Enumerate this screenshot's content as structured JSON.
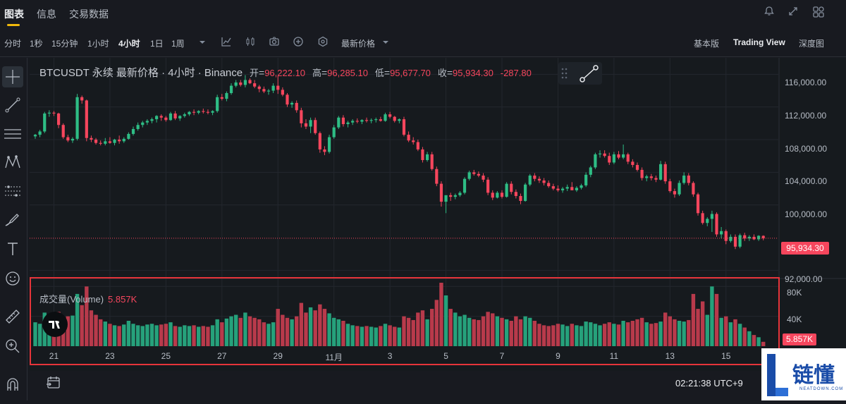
{
  "top_tabs": [
    {
      "label": "图表",
      "active": true
    },
    {
      "label": "信息",
      "active": false
    },
    {
      "label": "交易数据",
      "active": false
    }
  ],
  "top_icons": [
    "bell-icon",
    "expand-icon",
    "layout-grid-icon"
  ],
  "timeframes": [
    {
      "label": "分时",
      "active": false
    },
    {
      "label": "1秒",
      "active": false
    },
    {
      "label": "15分钟",
      "active": false
    },
    {
      "label": "1小时",
      "active": false
    },
    {
      "label": "4小时",
      "active": true
    },
    {
      "label": "1日",
      "active": false
    },
    {
      "label": "1周",
      "active": false
    }
  ],
  "toolbar": {
    "price_type": "最新价格",
    "modes": [
      {
        "label": "基本版",
        "active": false
      },
      {
        "label": "Trading View",
        "active": true
      },
      {
        "label": "深度图",
        "active": false
      }
    ]
  },
  "legend": {
    "symbol": "BTCUSDT 永续 最新价格 · 4小时 · Binance",
    "open_label": "开",
    "open": "96,222.10",
    "high_label": "高",
    "high": "96,285.10",
    "low_label": "低",
    "low": "95,677.70",
    "close_label": "收",
    "close": "95,934.30",
    "change": "-287.80"
  },
  "current_price": "95,934.30",
  "volume": {
    "title": "成交量(Volume)",
    "value": "5.857K",
    "tag": "5.857K"
  },
  "clock": "02:21:38 UTC+9",
  "watermark": {
    "title": "链懂",
    "sub": "NEATDOWN.COM"
  },
  "colors": {
    "up": "#2ebd85",
    "down": "#f6465d",
    "up_vol": "#26a17b",
    "down_vol": "#b83a4b",
    "accent": "#f0b90b"
  },
  "chart_data": {
    "type": "candlestick",
    "symbol": "BTCUSDT",
    "interval": "4小时",
    "y_ticks": [
      "116,000.00",
      "112,000.00",
      "108,000.00",
      "104,000.00",
      "100,000.00",
      "92,000.00"
    ],
    "y_tick_values": [
      116000,
      112000,
      108000,
      104000,
      100000,
      92000
    ],
    "ylim": [
      91000,
      117500
    ],
    "volume_ticks": [
      "80K",
      "40K"
    ],
    "volume_tick_values": [
      80000,
      40000
    ],
    "volume_max": 85000,
    "x_ticks": [
      {
        "label": "21",
        "index": 4
      },
      {
        "label": "23",
        "index": 16
      },
      {
        "label": "25",
        "index": 28
      },
      {
        "label": "27",
        "index": 40
      },
      {
        "label": "29",
        "index": 52
      },
      {
        "label": "11月",
        "index": 64
      },
      {
        "label": "3",
        "index": 76
      },
      {
        "label": "5",
        "index": 88
      },
      {
        "label": "7",
        "index": 100
      },
      {
        "label": "9",
        "index": 112
      },
      {
        "label": "11",
        "index": 124
      },
      {
        "label": "13",
        "index": 136
      },
      {
        "label": "15",
        "index": 148
      }
    ],
    "candles": [
      [
        108400,
        108700,
        108100,
        108600,
        32000
      ],
      [
        108600,
        109200,
        108300,
        109000,
        30000
      ],
      [
        109000,
        111400,
        108800,
        111200,
        45000
      ],
      [
        111200,
        111600,
        110800,
        111300,
        38000
      ],
      [
        111300,
        111500,
        110900,
        111200,
        30000
      ],
      [
        111200,
        111300,
        109400,
        109800,
        46000
      ],
      [
        109800,
        110000,
        108100,
        108300,
        35000
      ],
      [
        108300,
        108600,
        107700,
        107900,
        40000
      ],
      [
        107900,
        108300,
        107600,
        108100,
        41000
      ],
      [
        108100,
        113600,
        107900,
        113200,
        70000
      ],
      [
        113200,
        113400,
        112400,
        112800,
        55000
      ],
      [
        112800,
        112900,
        107800,
        108200,
        80000
      ],
      [
        108200,
        108500,
        107700,
        108000,
        48000
      ],
      [
        108000,
        108200,
        107400,
        107600,
        42000
      ],
      [
        107600,
        107900,
        107300,
        107500,
        36000
      ],
      [
        107500,
        108200,
        107300,
        107800,
        33000
      ],
      [
        107800,
        108300,
        107500,
        107600,
        30000
      ],
      [
        107600,
        108100,
        107300,
        108000,
        28000
      ],
      [
        108000,
        108500,
        107500,
        107800,
        27000
      ],
      [
        107800,
        108300,
        107600,
        108100,
        29000
      ],
      [
        108100,
        108900,
        108000,
        108700,
        34000
      ],
      [
        108700,
        109600,
        108500,
        109300,
        30000
      ],
      [
        109300,
        110100,
        109100,
        109800,
        28000
      ],
      [
        109800,
        110300,
        109500,
        110100,
        27000
      ],
      [
        110100,
        110500,
        109800,
        110300,
        29000
      ],
      [
        110300,
        110700,
        110000,
        110500,
        30000
      ],
      [
        110500,
        111000,
        110100,
        110900,
        28000
      ],
      [
        110900,
        111100,
        110300,
        110700,
        29000
      ],
      [
        110700,
        110900,
        110200,
        110400,
        30000
      ],
      [
        110400,
        111400,
        110300,
        111200,
        32000
      ],
      [
        111200,
        111500,
        110400,
        110600,
        27000
      ],
      [
        110600,
        111000,
        110300,
        110900,
        26000
      ],
      [
        110900,
        111300,
        110700,
        111100,
        28000
      ],
      [
        111100,
        111500,
        110900,
        111400,
        27000
      ],
      [
        111400,
        111700,
        111000,
        111300,
        28000
      ],
      [
        111300,
        111600,
        111100,
        111500,
        26000
      ],
      [
        111500,
        111800,
        111200,
        111400,
        27000
      ],
      [
        111400,
        111700,
        111100,
        111300,
        26000
      ],
      [
        111300,
        111600,
        111000,
        111500,
        28000
      ],
      [
        111500,
        113500,
        111300,
        113200,
        36000
      ],
      [
        113200,
        113600,
        112800,
        113000,
        32000
      ],
      [
        113000,
        113900,
        112700,
        113700,
        37000
      ],
      [
        113700,
        114900,
        113500,
        114600,
        40000
      ],
      [
        114600,
        115300,
        114400,
        115000,
        42000
      ],
      [
        115000,
        115300,
        114500,
        114700,
        38000
      ],
      [
        114700,
        115900,
        114400,
        115300,
        45000
      ],
      [
        115300,
        115500,
        114800,
        114900,
        40000
      ],
      [
        114900,
        115300,
        114300,
        114500,
        38000
      ],
      [
        114500,
        114700,
        113800,
        114200,
        36000
      ],
      [
        114200,
        114500,
        113700,
        113900,
        32000
      ],
      [
        113900,
        114200,
        113500,
        114000,
        30000
      ],
      [
        114000,
        114900,
        113700,
        114600,
        32000
      ],
      [
        114600,
        115800,
        113600,
        114100,
        50000
      ],
      [
        114100,
        114400,
        113300,
        113500,
        42000
      ],
      [
        113500,
        113700,
        112000,
        112300,
        38000
      ],
      [
        112300,
        112700,
        111900,
        112500,
        36000
      ],
      [
        112500,
        112800,
        111300,
        111600,
        40000
      ],
      [
        111600,
        111900,
        109500,
        110000,
        58000
      ],
      [
        110000,
        110500,
        109300,
        109600,
        45000
      ],
      [
        109600,
        110700,
        108800,
        110400,
        52000
      ],
      [
        110400,
        110700,
        108600,
        108800,
        48000
      ],
      [
        108800,
        109000,
        106400,
        106800,
        56000
      ],
      [
        106800,
        107200,
        106100,
        106500,
        50000
      ],
      [
        106500,
        108600,
        106300,
        108300,
        44000
      ],
      [
        108300,
        109800,
        108100,
        109500,
        38000
      ],
      [
        109500,
        110900,
        109300,
        110700,
        36000
      ],
      [
        110700,
        111000,
        109600,
        109900,
        34000
      ],
      [
        109900,
        110300,
        109500,
        110100,
        30000
      ],
      [
        110100,
        110500,
        109800,
        110300,
        28000
      ],
      [
        110300,
        110600,
        110000,
        110200,
        27000
      ],
      [
        110200,
        110500,
        109900,
        110400,
        26000
      ],
      [
        110400,
        110700,
        110100,
        110300,
        27000
      ],
      [
        110300,
        110600,
        110000,
        110400,
        26000
      ],
      [
        110400,
        110700,
        110100,
        110500,
        25000
      ],
      [
        110500,
        110800,
        110200,
        110300,
        27000
      ],
      [
        110300,
        111300,
        110200,
        111100,
        30000
      ],
      [
        111100,
        111400,
        110600,
        110800,
        28000
      ],
      [
        110800,
        110900,
        110100,
        110300,
        26000
      ],
      [
        110300,
        110600,
        110000,
        110500,
        25000
      ],
      [
        110500,
        110800,
        108400,
        108600,
        40000
      ],
      [
        108600,
        109000,
        107700,
        107900,
        38000
      ],
      [
        107900,
        108300,
        107400,
        107700,
        35000
      ],
      [
        107700,
        108000,
        106600,
        106800,
        45000
      ],
      [
        106800,
        107100,
        105200,
        105500,
        48000
      ],
      [
        105500,
        106500,
        105300,
        106200,
        36000
      ],
      [
        106200,
        106500,
        104200,
        104400,
        50000
      ],
      [
        104400,
        104700,
        102300,
        102600,
        62000
      ],
      [
        102600,
        102900,
        99800,
        100400,
        85000
      ],
      [
        100400,
        101000,
        99000,
        101200,
        68000
      ],
      [
        101200,
        101500,
        100500,
        101000,
        50000
      ],
      [
        101000,
        101400,
        100700,
        101200,
        45000
      ],
      [
        101200,
        101700,
        101000,
        101500,
        40000
      ],
      [
        101500,
        103400,
        101300,
        103200,
        42000
      ],
      [
        103200,
        104200,
        103000,
        104000,
        38000
      ],
      [
        104000,
        104300,
        103600,
        103800,
        36000
      ],
      [
        103800,
        104100,
        103400,
        103600,
        35000
      ],
      [
        103600,
        103900,
        102800,
        103100,
        40000
      ],
      [
        103100,
        103400,
        101200,
        101500,
        46000
      ],
      [
        101500,
        101800,
        100600,
        100900,
        44000
      ],
      [
        100900,
        101700,
        100800,
        101500,
        40000
      ],
      [
        101500,
        101800,
        100800,
        101000,
        38000
      ],
      [
        101000,
        102800,
        100900,
        102600,
        36000
      ],
      [
        102600,
        102900,
        101300,
        101600,
        34000
      ],
      [
        101600,
        101900,
        100800,
        101100,
        40000
      ],
      [
        101100,
        101400,
        100100,
        100500,
        36000
      ],
      [
        100500,
        102700,
        100400,
        102500,
        40000
      ],
      [
        102500,
        103800,
        102300,
        103600,
        38000
      ],
      [
        103600,
        103900,
        102900,
        103200,
        34000
      ],
      [
        103200,
        103500,
        102700,
        103000,
        30000
      ],
      [
        103000,
        103300,
        102400,
        102700,
        28000
      ],
      [
        102700,
        103000,
        102100,
        102300,
        27000
      ],
      [
        102300,
        102600,
        101800,
        102000,
        28000
      ],
      [
        102000,
        102400,
        101600,
        101800,
        30000
      ],
      [
        101800,
        102200,
        101500,
        102000,
        29000
      ],
      [
        102000,
        102500,
        101700,
        102200,
        27000
      ],
      [
        102200,
        102800,
        101900,
        101800,
        30000
      ],
      [
        101800,
        102300,
        101600,
        102100,
        28000
      ],
      [
        102100,
        102600,
        101900,
        102400,
        27000
      ],
      [
        102400,
        104000,
        102200,
        103700,
        33000
      ],
      [
        103700,
        104800,
        103400,
        104600,
        32000
      ],
      [
        104600,
        106400,
        104400,
        106200,
        30000
      ],
      [
        106200,
        106700,
        105800,
        106300,
        28000
      ],
      [
        106300,
        106700,
        105800,
        106000,
        30000
      ],
      [
        106000,
        106400,
        104900,
        105200,
        32000
      ],
      [
        105200,
        106500,
        105000,
        106200,
        30000
      ],
      [
        106200,
        106600,
        105600,
        105800,
        29000
      ],
      [
        105800,
        107400,
        105600,
        106200,
        34000
      ],
      [
        106200,
        106400,
        105000,
        105300,
        32000
      ],
      [
        105300,
        105600,
        104600,
        104900,
        34000
      ],
      [
        104900,
        105200,
        104100,
        104300,
        36000
      ],
      [
        104300,
        104600,
        103000,
        103300,
        38000
      ],
      [
        103300,
        103700,
        102900,
        103500,
        32000
      ],
      [
        103500,
        103800,
        103000,
        103300,
        30000
      ],
      [
        103300,
        103600,
        102800,
        103100,
        31000
      ],
      [
        103100,
        105400,
        103000,
        105000,
        33000
      ],
      [
        105000,
        105300,
        102600,
        102900,
        45000
      ],
      [
        102900,
        103200,
        101500,
        101700,
        40000
      ],
      [
        101700,
        102000,
        100900,
        101300,
        36000
      ],
      [
        101300,
        103000,
        101100,
        102700,
        34000
      ],
      [
        102700,
        104000,
        102500,
        103600,
        33000
      ],
      [
        103600,
        103900,
        102400,
        102700,
        35000
      ],
      [
        102700,
        102900,
        101000,
        101300,
        70000
      ],
      [
        101300,
        101500,
        98700,
        99000,
        50000
      ],
      [
        99000,
        99300,
        97600,
        97800,
        60000
      ],
      [
        97800,
        98500,
        97400,
        98300,
        42000
      ],
      [
        98300,
        99300,
        96700,
        98900,
        80000
      ],
      [
        98900,
        99100,
        96100,
        96400,
        70000
      ],
      [
        96400,
        97300,
        95900,
        96800,
        38000
      ],
      [
        96800,
        97000,
        95200,
        95600,
        40000
      ],
      [
        95600,
        96400,
        95400,
        96100,
        32000
      ],
      [
        96100,
        96400,
        94600,
        94900,
        36000
      ],
      [
        94900,
        96500,
        94700,
        96300,
        30000
      ],
      [
        96300,
        96600,
        95600,
        95900,
        25000
      ],
      [
        95900,
        96300,
        95600,
        96100,
        20000
      ],
      [
        96100,
        96400,
        95700,
        95800,
        15000
      ],
      [
        95800,
        96300,
        95600,
        96222.1,
        12000
      ],
      [
        96222.1,
        96285.1,
        95677.7,
        95934.3,
        5857
      ]
    ]
  }
}
